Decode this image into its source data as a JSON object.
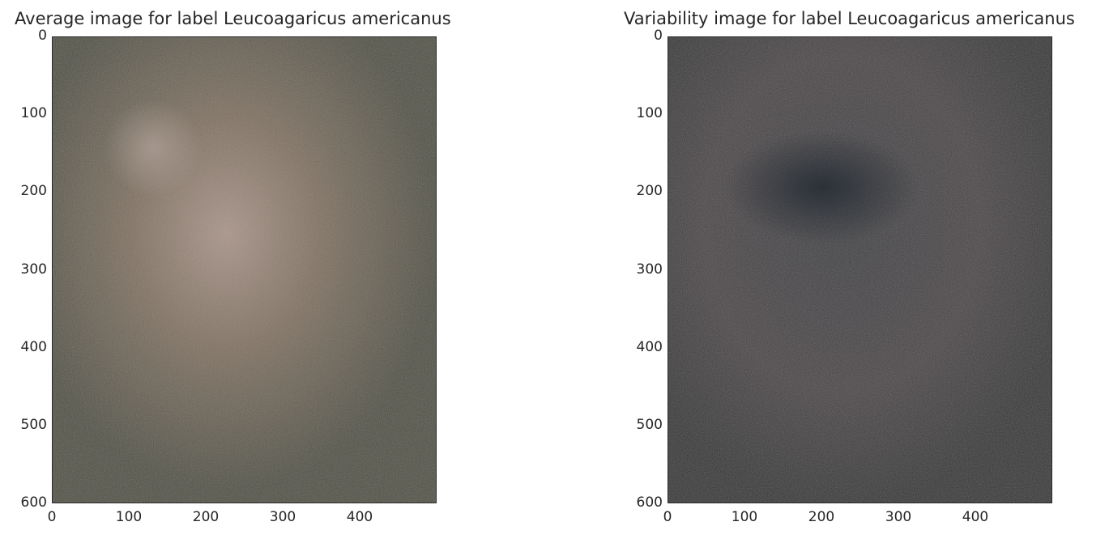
{
  "chart_data": [
    {
      "type": "heatmap",
      "title": "Average image for label Leucoagaricus americanus",
      "xlabel": "",
      "ylabel": "",
      "xlim": [
        0,
        500
      ],
      "ylim": [
        600,
        0
      ],
      "xticks": [
        0,
        100,
        200,
        300,
        400
      ],
      "yticks": [
        0,
        100,
        200,
        300,
        400,
        500,
        600
      ],
      "colors": {
        "background": "#5c5a4c",
        "center": "#a9958a",
        "mid": "#80705f",
        "edge": "#4d4d3f"
      }
    },
    {
      "type": "heatmap",
      "title": "Variability image for label Leucoagaricus americanus",
      "xlabel": "",
      "ylabel": "",
      "xlim": [
        0,
        500
      ],
      "ylim": [
        600,
        0
      ],
      "xticks": [
        0,
        100,
        200,
        300,
        400
      ],
      "yticks": [
        0,
        100,
        200,
        300,
        400,
        500,
        600
      ],
      "colors": {
        "background": "#3a393b",
        "center": "#2b3138",
        "mid": "#4a4446",
        "edge": "#333333"
      }
    }
  ]
}
